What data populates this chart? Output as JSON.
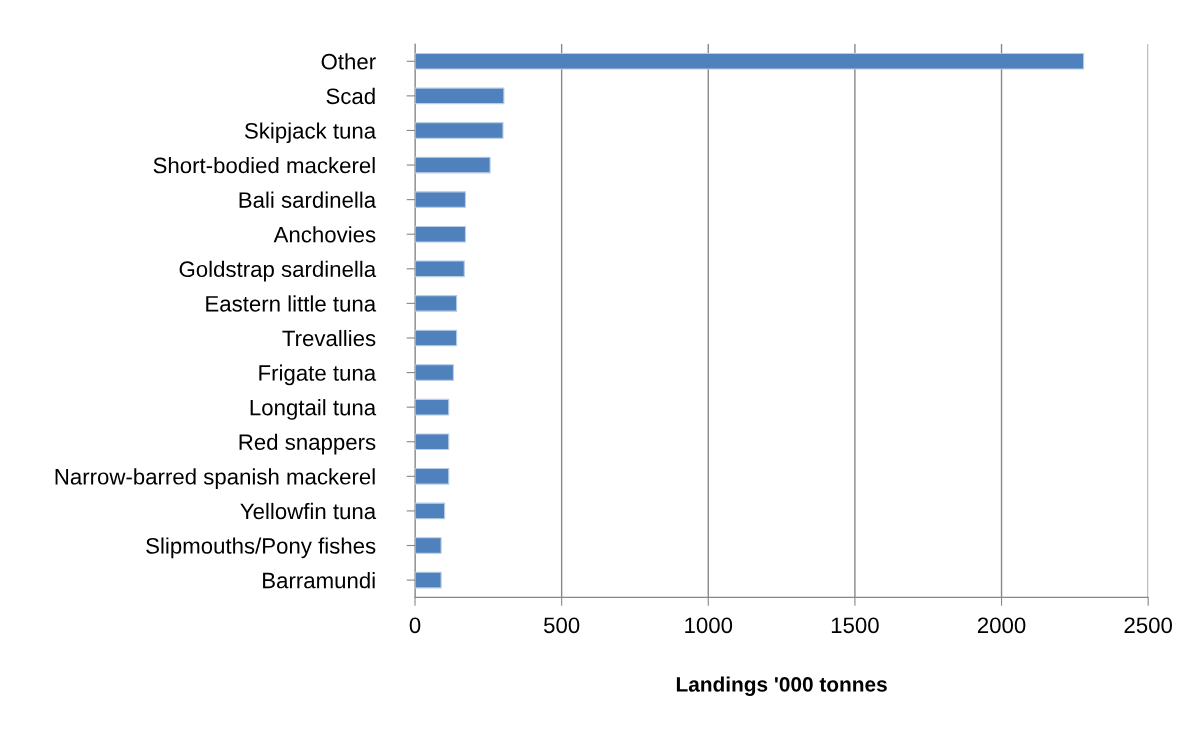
{
  "chart_data": {
    "type": "bar",
    "orientation": "horizontal",
    "xlabel": "Landings '000 tonnes",
    "categories": [
      "Other",
      "Scad",
      "Skipjack tuna",
      "Short-bodied mackerel",
      "Bali sardinella",
      "Anchovies",
      "Goldstrap sardinella",
      "Eastern little tuna",
      "Trevallies",
      "Frigate tuna",
      "Longtail tuna",
      "Red snappers",
      "Narrow-barred spanish mackerel",
      "Yellowfin tuna",
      "Slipmouths/Pony fishes",
      "Barramundi"
    ],
    "values": [
      2280,
      303,
      300,
      256,
      172,
      172,
      168,
      142,
      142,
      131,
      115,
      115,
      115,
      101,
      89,
      89
    ],
    "color": "#4f81bd",
    "xlim": [
      0,
      2500
    ],
    "xticks": [
      0,
      500,
      1000,
      1500,
      2000,
      2500
    ],
    "grid": "x"
  }
}
